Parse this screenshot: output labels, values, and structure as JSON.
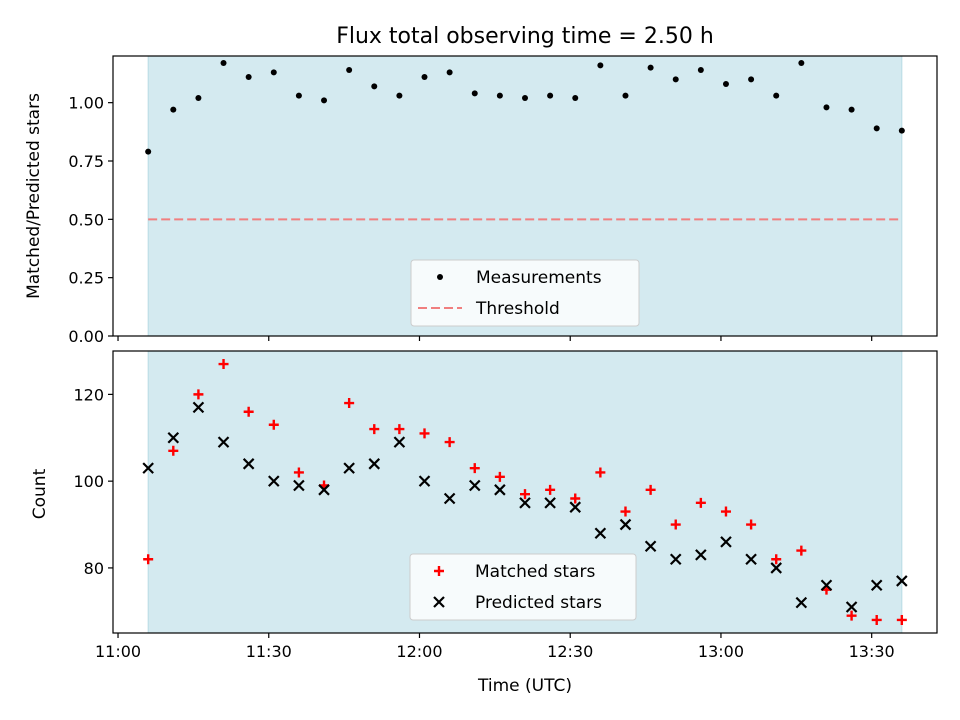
{
  "colors": {
    "observing_span": "#d4eaf0",
    "measurement": "#000000",
    "threshold": "#f07f7f",
    "matched": "#ff0000",
    "predicted": "#000000"
  },
  "chart_data": [
    {
      "type": "scatter",
      "title": "Flux total observing time = 2.50 h",
      "xlabel": "",
      "ylabel": "Matched/Predicted stars",
      "xlim": [
        "10:59",
        "13:43"
      ],
      "ylim": [
        0.0,
        1.2
      ],
      "xticks": [
        "11:00",
        "11:30",
        "12:00",
        "12:30",
        "13:00",
        "13:30"
      ],
      "yticks": [
        "0.00",
        "0.25",
        "0.50",
        "0.75",
        "1.00"
      ],
      "observing_span": [
        "11:06",
        "13:36"
      ],
      "legend": {
        "placement": "lower center",
        "entries": [
          "Measurements",
          "Threshold"
        ]
      },
      "threshold": 0.5,
      "series": [
        {
          "name": "Measurements",
          "x": [
            "11:06",
            "11:11",
            "11:16",
            "11:21",
            "11:26",
            "11:31",
            "11:36",
            "11:41",
            "11:46",
            "11:51",
            "11:56",
            "12:01",
            "12:06",
            "12:11",
            "12:16",
            "12:21",
            "12:26",
            "12:31",
            "12:36",
            "12:41",
            "12:46",
            "12:51",
            "12:56",
            "13:01",
            "13:06",
            "13:11",
            "13:16",
            "13:21",
            "13:26",
            "13:31",
            "13:36"
          ],
          "values": [
            0.79,
            0.97,
            1.02,
            1.17,
            1.11,
            1.13,
            1.03,
            1.01,
            1.14,
            1.07,
            1.03,
            1.11,
            1.13,
            1.04,
            1.03,
            1.02,
            1.03,
            1.02,
            1.16,
            1.03,
            1.15,
            1.1,
            1.14,
            1.08,
            1.1,
            1.03,
            1.17,
            0.98,
            0.97,
            0.89,
            0.88
          ]
        }
      ]
    },
    {
      "type": "scatter",
      "title": "",
      "xlabel": "Time (UTC)",
      "ylabel": "Count",
      "xlim": [
        "10:59",
        "13:43"
      ],
      "ylim": [
        65,
        130
      ],
      "xticks": [
        "11:00",
        "11:30",
        "12:00",
        "12:30",
        "13:00",
        "13:30"
      ],
      "yticks": [
        "80",
        "100",
        "120"
      ],
      "observing_span": [
        "11:06",
        "13:36"
      ],
      "legend": {
        "placement": "lower center",
        "entries": [
          "Matched stars",
          "Predicted stars"
        ]
      },
      "series": [
        {
          "name": "Matched stars",
          "x": [
            "11:06",
            "11:11",
            "11:16",
            "11:21",
            "11:26",
            "11:31",
            "11:36",
            "11:41",
            "11:46",
            "11:51",
            "11:56",
            "12:01",
            "12:06",
            "12:11",
            "12:16",
            "12:21",
            "12:26",
            "12:31",
            "12:36",
            "12:41",
            "12:46",
            "12:51",
            "12:56",
            "13:01",
            "13:06",
            "13:11",
            "13:16",
            "13:21",
            "13:26",
            "13:31",
            "13:36"
          ],
          "values": [
            82,
            107,
            120,
            127,
            116,
            113,
            102,
            99,
            118,
            112,
            112,
            111,
            109,
            103,
            101,
            97,
            98,
            96,
            102,
            93,
            98,
            90,
            95,
            93,
            90,
            82,
            84,
            75,
            69,
            68,
            68
          ]
        },
        {
          "name": "Predicted stars",
          "x": [
            "11:06",
            "11:11",
            "11:16",
            "11:21",
            "11:26",
            "11:31",
            "11:36",
            "11:41",
            "11:46",
            "11:51",
            "11:56",
            "12:01",
            "12:06",
            "12:11",
            "12:16",
            "12:21",
            "12:26",
            "12:31",
            "12:36",
            "12:41",
            "12:46",
            "12:51",
            "12:56",
            "13:01",
            "13:06",
            "13:11",
            "13:16",
            "13:21",
            "13:26",
            "13:31",
            "13:36"
          ],
          "values": [
            103,
            110,
            117,
            109,
            104,
            100,
            99,
            98,
            103,
            104,
            109,
            100,
            96,
            99,
            98,
            95,
            95,
            94,
            88,
            90,
            85,
            82,
            83,
            86,
            82,
            80,
            72,
            76,
            71,
            76,
            77
          ]
        }
      ]
    }
  ]
}
